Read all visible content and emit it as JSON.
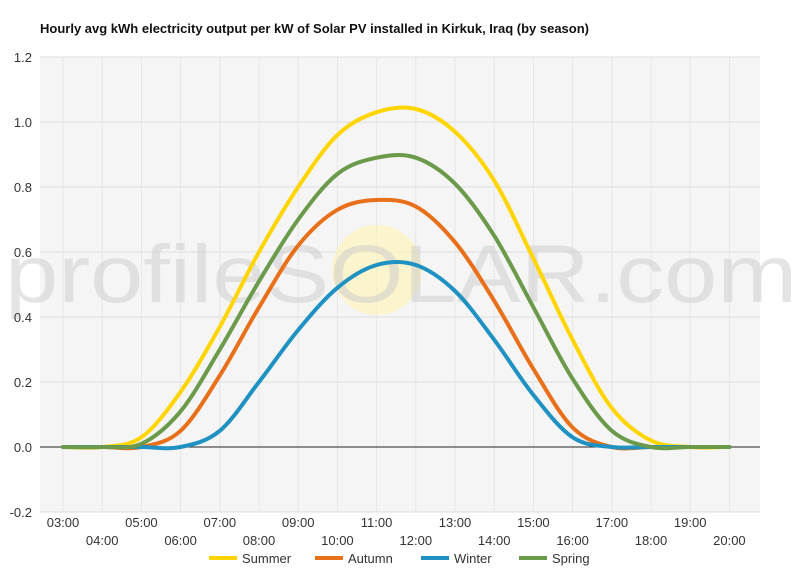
{
  "chart_data": {
    "type": "line",
    "title": "Hourly avg kWh electricity output per kW of Solar PV installed in Kirkuk, Iraq (by season)",
    "xlabel": "",
    "ylabel": "",
    "x": [
      "03:00",
      "04:00",
      "05:00",
      "06:00",
      "07:00",
      "08:00",
      "09:00",
      "10:00",
      "11:00",
      "12:00",
      "13:00",
      "14:00",
      "15:00",
      "16:00",
      "17:00",
      "18:00",
      "19:00",
      "20:00"
    ],
    "ylim": [
      -0.2,
      1.2
    ],
    "yticks": [
      "-0.2",
      "0.0",
      "0.2",
      "0.4",
      "0.6",
      "0.8",
      "1.0",
      "1.2"
    ],
    "grid": "horizontal",
    "legend_position": "bottom",
    "series": [
      {
        "name": "Summer",
        "color": "#FFD500",
        "values": [
          0.0,
          0.0,
          0.03,
          0.17,
          0.37,
          0.6,
          0.8,
          0.96,
          1.03,
          1.04,
          0.97,
          0.82,
          0.58,
          0.33,
          0.12,
          0.02,
          0.0,
          0.0
        ]
      },
      {
        "name": "Autumn",
        "color": "#E8701A",
        "values": [
          0.0,
          0.0,
          0.0,
          0.05,
          0.22,
          0.43,
          0.62,
          0.73,
          0.76,
          0.74,
          0.63,
          0.45,
          0.24,
          0.06,
          0.0,
          0.0,
          0.0,
          0.0
        ]
      },
      {
        "name": "Winter",
        "color": "#1F91C2",
        "values": [
          0.0,
          0.0,
          0.0,
          0.0,
          0.05,
          0.2,
          0.36,
          0.49,
          0.56,
          0.56,
          0.48,
          0.33,
          0.16,
          0.03,
          0.0,
          0.0,
          0.0,
          0.0
        ]
      },
      {
        "name": "Spring",
        "color": "#6A9A4A",
        "values": [
          0.0,
          0.0,
          0.01,
          0.11,
          0.3,
          0.51,
          0.7,
          0.84,
          0.89,
          0.89,
          0.81,
          0.65,
          0.43,
          0.21,
          0.05,
          0.0,
          0.0,
          0.0
        ]
      }
    ],
    "watermark": "profileSOLAR.com"
  }
}
